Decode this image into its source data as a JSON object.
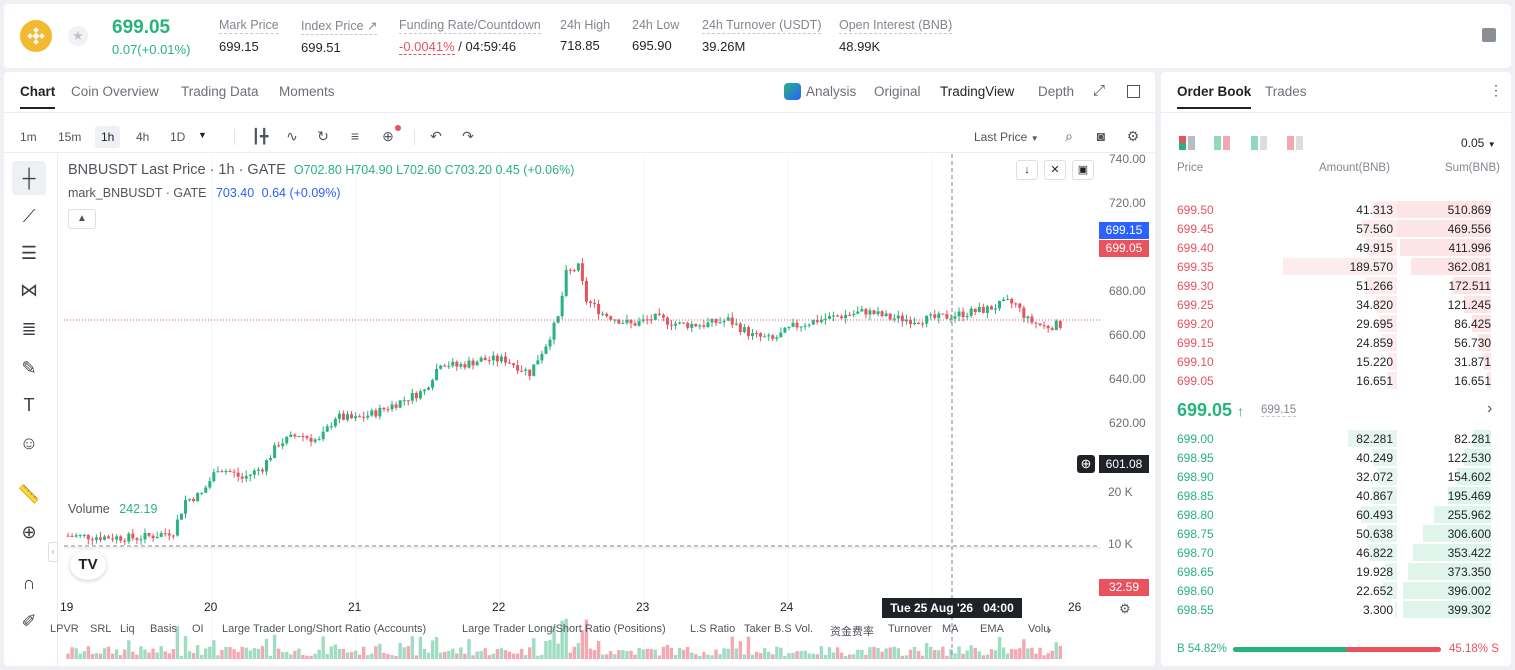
{
  "header": {
    "last_price": "699.05",
    "change": "0.07(+0.01%)",
    "stats": [
      {
        "label": "Mark Price",
        "value": "699.15"
      },
      {
        "label": "Index Price ↗",
        "value": "699.51"
      },
      {
        "label": "Funding Rate/Countdown",
        "value": "-0.0041%",
        "value2": " / 04:59:46"
      },
      {
        "label": "24h High",
        "value": "718.85"
      },
      {
        "label": "24h Low",
        "value": "695.90"
      },
      {
        "label": "24h Turnover (USDT)",
        "value": "39.26M"
      },
      {
        "label": "Open Interest (BNB)",
        "value": "48.99K"
      }
    ]
  },
  "chart_tabs": [
    "Chart",
    "Coin Overview",
    "Trading Data",
    "Moments"
  ],
  "view_tabs": [
    "Analysis",
    "Original",
    "TradingView",
    "Depth"
  ],
  "timeframes": [
    "1m",
    "15m",
    "1h",
    "4h",
    "1D"
  ],
  "price_source": "Last Price",
  "legend": {
    "symbol": "BNBUSDT Last Price · 1h · GATE",
    "o": "O702.80",
    "h": "H704.90",
    "l": "L702.60",
    "c": "C703.20",
    "chg": "0.45 (+0.06%)",
    "mark": "mark_BNBUSDT · GATE",
    "mark_val": "703.40",
    "mark_chg": "0.64 (+0.09%)"
  },
  "volume_label": "Volume",
  "volume_value": "242.19",
  "price_axis": [
    "740.00",
    "720.00",
    "700.00",
    "680.00",
    "660.00",
    "640.00",
    "620.00"
  ],
  "mark_tag": "699.15",
  "last_tag": "699.05",
  "cross_tag": "601.08",
  "vol_axis": [
    "20 K",
    "10 K"
  ],
  "vol_tag": "32.59",
  "date_axis": [
    "19",
    "20",
    "21",
    "22",
    "23",
    "24",
    "26"
  ],
  "crosshair_date": "Tue 25 Aug '26   04:00",
  "indicators": [
    "LPVR",
    "SRL",
    "Liq",
    "Basis",
    "OI",
    "Large Trader Long/Short Ratio (Accounts)",
    "Large Trader Long/Short Ratio (Positions)",
    "L.S Ratio",
    "Taker B.S Vol.",
    "资金费率",
    "Turnover",
    "MA",
    "EMA",
    "Volu"
  ],
  "orderbook": {
    "tabs": [
      "Order Book",
      "Trades"
    ],
    "precision": "0.05",
    "cols": [
      "Price",
      "Amount(BNB)",
      "Sum(BNB)"
    ],
    "asks": [
      {
        "p": "699.50",
        "a": "41.313",
        "s": "510.869"
      },
      {
        "p": "699.45",
        "a": "57.560",
        "s": "469.556"
      },
      {
        "p": "699.40",
        "a": "49.915",
        "s": "411.996"
      },
      {
        "p": "699.35",
        "a": "189.570",
        "s": "362.081"
      },
      {
        "p": "699.30",
        "a": "51.266",
        "s": "172.511"
      },
      {
        "p": "699.25",
        "a": "34.820",
        "s": "121.245"
      },
      {
        "p": "699.20",
        "a": "29.695",
        "s": "86.425"
      },
      {
        "p": "699.15",
        "a": "24.859",
        "s": "56.730"
      },
      {
        "p": "699.10",
        "a": "15.220",
        "s": "31.871"
      },
      {
        "p": "699.05",
        "a": "16.651",
        "s": "16.651"
      }
    ],
    "mid_price": "699.05",
    "mid_mark": "699.15",
    "bids": [
      {
        "p": "699.00",
        "a": "82.281",
        "s": "82.281"
      },
      {
        "p": "698.95",
        "a": "40.249",
        "s": "122.530"
      },
      {
        "p": "698.90",
        "a": "32.072",
        "s": "154.602"
      },
      {
        "p": "698.85",
        "a": "40.867",
        "s": "195.469"
      },
      {
        "p": "698.80",
        "a": "60.493",
        "s": "255.962"
      },
      {
        "p": "698.75",
        "a": "50.638",
        "s": "306.600"
      },
      {
        "p": "698.70",
        "a": "46.822",
        "s": "353.422"
      },
      {
        "p": "698.65",
        "a": "19.928",
        "s": "373.350"
      },
      {
        "p": "698.60",
        "a": "22.652",
        "s": "396.002"
      },
      {
        "p": "698.55",
        "a": "3.300",
        "s": "399.302"
      }
    ],
    "buy_ratio": "B 54.82%",
    "sell_ratio": "45.18% S",
    "buy_pct": 54.82
  },
  "colors": {
    "up": "#26b37d",
    "down": "#e9525f",
    "mark_blue": "#2962ff"
  }
}
